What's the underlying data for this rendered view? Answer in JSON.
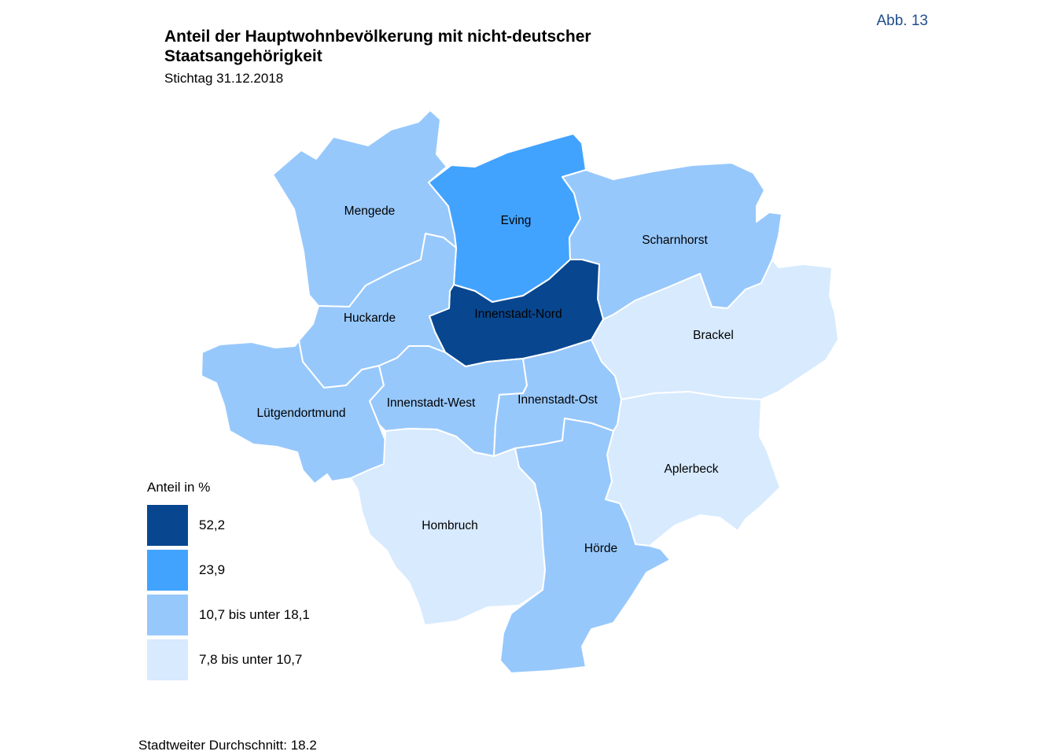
{
  "header": {
    "figure_label": "Abb. 13",
    "title_line1": "Anteil der Hauptwohnbevölkerung mit nicht-deutscher",
    "title_line2": "Staatsangehörigkeit",
    "subtitle": "Stichtag 31.12.2018"
  },
  "colors": {
    "class1": "#08478f",
    "class2": "#42a3ff",
    "class3": "#97c8fc",
    "class4": "#d7eafe",
    "border": "#ffffff"
  },
  "legend": {
    "title": "Anteil in %",
    "items": [
      {
        "label": "52,2",
        "color_key": "class1"
      },
      {
        "label": "23,9",
        "color_key": "class2"
      },
      {
        "label": "10,7 bis unter 18,1",
        "color_key": "class3"
      },
      {
        "label": "7,8 bis unter 10,7",
        "color_key": "class4"
      }
    ]
  },
  "districts": [
    {
      "id": "mengede",
      "name": "Mengede",
      "color_key": "class3"
    },
    {
      "id": "eving",
      "name": "Eving",
      "color_key": "class2"
    },
    {
      "id": "scharnhorst",
      "name": "Scharnhorst",
      "color_key": "class3"
    },
    {
      "id": "innenstadt-nord",
      "name": "Innenstadt-Nord",
      "color_key": "class1"
    },
    {
      "id": "huckarde",
      "name": "Huckarde",
      "color_key": "class3"
    },
    {
      "id": "brackel",
      "name": "Brackel",
      "color_key": "class4"
    },
    {
      "id": "luetgendortmund",
      "name": "Lütgendortmund",
      "color_key": "class3"
    },
    {
      "id": "innenstadt-west",
      "name": "Innenstadt-West",
      "color_key": "class3"
    },
    {
      "id": "innenstadt-ost",
      "name": "Innenstadt-Ost",
      "color_key": "class3"
    },
    {
      "id": "aplerbeck",
      "name": "Aplerbeck",
      "color_key": "class4"
    },
    {
      "id": "hombruch",
      "name": "Hombruch",
      "color_key": "class4"
    },
    {
      "id": "hoerde",
      "name": "Hörde",
      "color_key": "class3"
    }
  ],
  "footer": {
    "average_text": "Stadtweiter Durchschnitt: 18.2"
  }
}
